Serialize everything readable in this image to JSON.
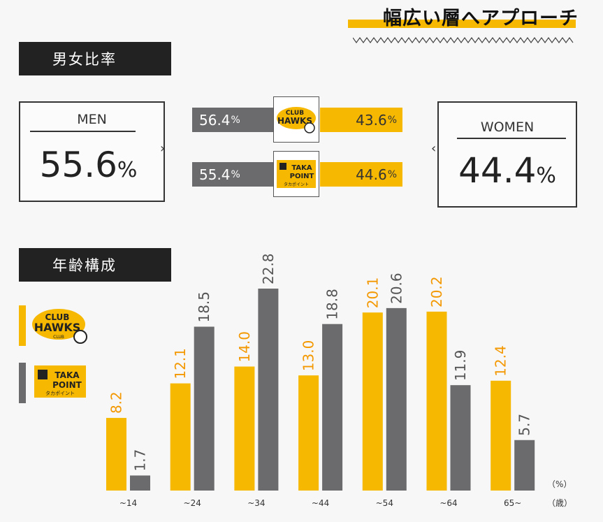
{
  "headline": "幅広い層へアプローチ",
  "gender": {
    "section_label": "男女比率",
    "men_label": "MEN",
    "men_value": "55.6",
    "women_label": "WOMEN",
    "women_value": "44.4",
    "percent": "%",
    "rows": [
      {
        "logo": "club-hawks-logo",
        "gray_value": "56.4",
        "yellow_value": "43.6"
      },
      {
        "logo": "taka-point-logo",
        "gray_value": "55.4",
        "yellow_value": "44.6"
      }
    ]
  },
  "logos": {
    "club_line1": "CLUB",
    "club_line2": "HAWKS",
    "club_sub": "CLUB",
    "taka_line1": "TAKA",
    "taka_line2": "POINT",
    "taka_sub": "タカポイント"
  },
  "age": {
    "section_label": "年齢構成"
  },
  "colors": {
    "yellow": "#f6b800",
    "gray": "#6b6b6d",
    "dark": "#222222"
  },
  "chart_data": {
    "type": "bar",
    "categories": [
      "~14",
      "~24",
      "~34",
      "~44",
      "~54",
      "~64",
      "65~"
    ],
    "series": [
      {
        "values": [
          8.2,
          12.1,
          14.0,
          13.0,
          20.1,
          20.2,
          12.4
        ],
        "color": "#f6b800",
        "label_color": "#f39800",
        "legend": "club-hawks-logo"
      },
      {
        "values": [
          1.7,
          18.5,
          22.8,
          18.8,
          20.6,
          11.9,
          5.7
        ],
        "color": "#6b6b6d",
        "label_color": "#555555",
        "legend": "taka-point-logo"
      }
    ],
    "ylim": [
      0,
      22.8
    ],
    "grid": false,
    "y_unit": "（%）",
    "x_unit": "（歳）",
    "value_labels": [
      "8.2",
      "12.1",
      "14.0",
      "13.0",
      "20.1",
      "20.2",
      "12.4",
      "1.7",
      "18.5",
      "22.8",
      "18.8",
      "20.6",
      "11.9",
      "5.7"
    ]
  }
}
